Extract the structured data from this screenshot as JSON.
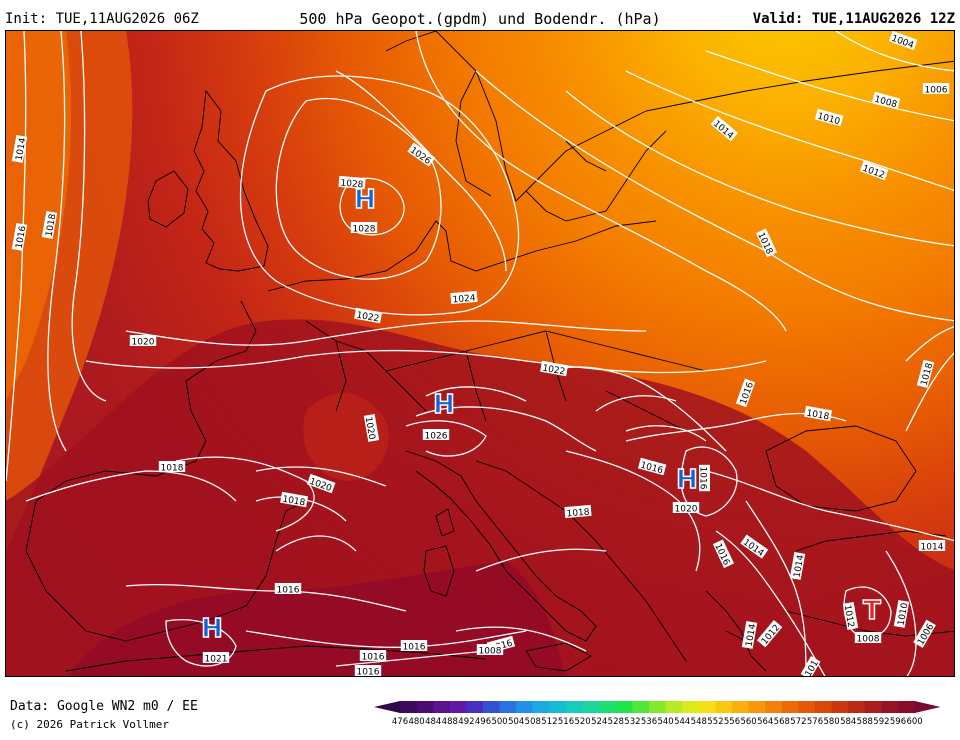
{
  "header": {
    "init": "Init: TUE,11AUG2026 06Z",
    "title": "500 hPa Geopot.(gpdm) und Bodendr. (hPa)",
    "valid": "Valid: TUE,11AUG2026 12Z"
  },
  "footer": {
    "data_source": "Data: Google WN2 m0 / EE",
    "copyright": "(c) 2026 Patrick Vollmer"
  },
  "colorbar": {
    "labels": [
      "476",
      "480",
      "484",
      "488",
      "492",
      "496",
      "500",
      "504",
      "508",
      "512",
      "516",
      "520",
      "524",
      "528",
      "532",
      "536",
      "540",
      "544",
      "548",
      "552",
      "556",
      "560",
      "564",
      "568",
      "572",
      "576",
      "580",
      "584",
      "588",
      "592",
      "596",
      "600"
    ],
    "colors": [
      "#3b0a5a",
      "#4a0c72",
      "#5a128e",
      "#6418a8",
      "#4630c0",
      "#3450d0",
      "#2a72e0",
      "#2290e6",
      "#1ca8e2",
      "#18bcd4",
      "#18ccbc",
      "#1cd69a",
      "#1ce070",
      "#20e44c",
      "#52e638",
      "#86e82c",
      "#b6ea24",
      "#dcea1c",
      "#f6e014",
      "#fac80e",
      "#fab00a",
      "#f89808",
      "#f48006",
      "#ee6a06",
      "#e45808",
      "#da480a",
      "#cc380e",
      "#bc2a14",
      "#aa1e1a",
      "#981424",
      "#880c2c"
    ]
  },
  "pressure_labels": [
    "1004",
    "1006",
    "1008",
    "1010",
    "1012",
    "1014",
    "1014",
    "1016",
    "1018",
    "1018",
    "1020",
    "1022",
    "1024",
    "1026",
    "1026",
    "1028",
    "1028",
    "1020",
    "1022",
    "1018",
    "1016",
    "1018",
    "1020",
    "1018",
    "1016",
    "1018",
    "1020",
    "1016",
    "1016",
    "1021",
    "1016",
    "1016",
    "1016",
    "1014",
    "1014",
    "1012",
    "1016",
    "1014",
    "1012",
    "1010",
    "1008",
    "1006",
    "1008",
    "1016",
    "1018",
    "1014",
    "101"
  ],
  "pressure_centers": [
    {
      "symbol": "H",
      "color": "#1560d8"
    },
    {
      "symbol": "H",
      "color": "#1560d8"
    },
    {
      "symbol": "H",
      "color": "#1560d8"
    },
    {
      "symbol": "H",
      "color": "#1560d8"
    },
    {
      "symbol": "T",
      "color": "#e8202a"
    }
  ]
}
